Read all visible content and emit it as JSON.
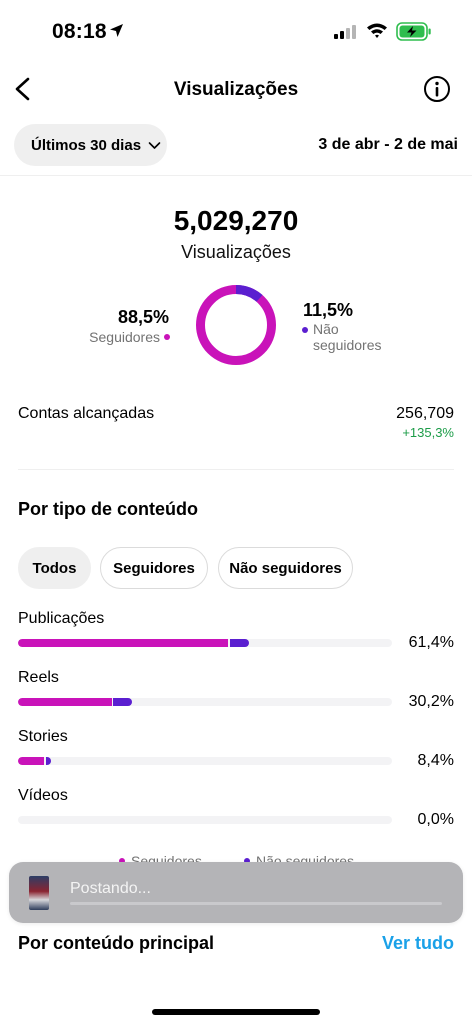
{
  "status_bar": {
    "time": "08:18"
  },
  "nav": {
    "title": "Visualizações"
  },
  "period": {
    "button_label": "Últimos 30 dias",
    "date_range": "3 de abr - 2 de mai"
  },
  "summary": {
    "total": "5,029,270",
    "total_label": "Visualizações",
    "followers_pct": "88,5%",
    "followers_label": "Seguidores",
    "non_followers_pct": "11,5%",
    "non_followers_label_1": "Não",
    "non_followers_label_2": "seguidores",
    "followers_fraction": 0.885,
    "non_followers_fraction": 0.115
  },
  "accounts": {
    "label": "Contas alcançadas",
    "value": "256,709",
    "change": "+135,3%"
  },
  "content_type": {
    "title": "Por tipo de conteúdo",
    "filters": [
      "Todos",
      "Seguidores",
      "Não seguidores"
    ],
    "rows": [
      {
        "label": "Publicações",
        "pct": "61,4%",
        "followers_share": 56.2,
        "non_followers_share": 5.2
      },
      {
        "label": "Reels",
        "pct": "30,2%",
        "followers_share": 25.0,
        "non_followers_share": 5.2
      },
      {
        "label": "Stories",
        "pct": "8,4%",
        "followers_share": 7.0,
        "non_followers_share": 1.4
      },
      {
        "label": "Vídeos",
        "pct": "0,0%",
        "followers_share": 0,
        "non_followers_share": 0
      }
    ],
    "legend": {
      "followers": "Seguidores",
      "non_followers": "Não seguidores"
    }
  },
  "toast": {
    "text": "Postando..."
  },
  "main_content": {
    "title": "Por conteúdo principal",
    "see_all": "Ver tudo"
  },
  "colors": {
    "followers": "#c913b9",
    "non_followers": "#5b1fd0",
    "positive": "#1c9c48",
    "link": "#1aa1e8"
  }
}
